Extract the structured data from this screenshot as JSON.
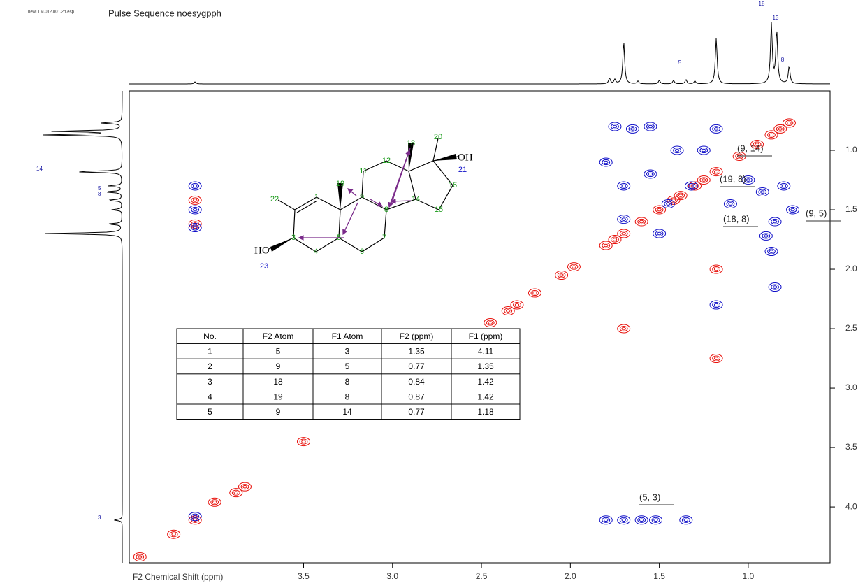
{
  "chart_data": {
    "type": "nmr2d",
    "file": "newLTM.012.001.2rr.esp",
    "title": "Pulse Sequence  noesygpph",
    "x_label": "F2 Chemical Shift (ppm)",
    "xlim": [
      4.48,
      0.54
    ],
    "xticks": [
      3.5,
      3.0,
      2.5,
      2.0,
      1.5,
      1.0
    ],
    "ylim": [
      0.5,
      4.47
    ],
    "yticks": [
      1.0,
      1.5,
      2.0,
      2.5,
      3.0,
      3.5,
      4.0
    ],
    "series": [
      {
        "color": "#e8120c",
        "x": [
          0.77,
          0.82,
          0.87,
          0.95,
          1.05,
          1.18,
          1.25,
          1.3,
          1.38,
          1.42,
          1.5,
          1.6,
          1.7,
          1.75,
          1.8,
          1.98,
          2.05,
          2.2,
          2.3,
          2.35,
          2.45,
          3.5,
          3.83,
          3.88,
          4.0,
          4.11,
          4.23,
          4.42,
          4.11,
          4.11,
          1.18,
          1.7,
          1.18
        ],
        "y": [
          0.77,
          0.82,
          0.87,
          0.95,
          1.05,
          1.18,
          1.25,
          1.3,
          1.38,
          1.42,
          1.5,
          1.6,
          1.7,
          1.75,
          1.8,
          1.98,
          2.05,
          2.2,
          2.3,
          2.35,
          2.45,
          3.45,
          3.83,
          3.88,
          3.96,
          4.11,
          4.23,
          4.42,
          1.42,
          1.62,
          2.75,
          2.5,
          2.0
        ]
      },
      {
        "color": "#1010c8",
        "x": [
          4.11,
          4.11,
          4.11,
          4.11,
          1.8,
          1.7,
          1.6,
          1.52,
          1.35,
          0.8,
          0.75,
          0.85,
          0.9,
          1.0,
          1.1,
          1.25,
          1.4,
          1.55,
          1.65,
          1.75,
          1.8,
          1.7,
          1.18,
          1.18,
          0.87,
          1.45,
          1.32,
          1.5,
          1.7,
          1.55,
          0.92,
          0.85
        ],
        "y": [
          1.3,
          1.5,
          1.65,
          4.08,
          4.11,
          4.11,
          4.11,
          4.11,
          4.11,
          1.3,
          1.5,
          1.6,
          1.72,
          1.25,
          1.45,
          1.0,
          1.0,
          0.8,
          0.82,
          0.8,
          1.1,
          1.3,
          0.82,
          2.3,
          1.85,
          1.45,
          1.3,
          1.7,
          1.58,
          1.2,
          1.35,
          2.15
        ]
      }
    ],
    "f2_projection": {
      "x": [
        4.11,
        1.78,
        1.75,
        1.7,
        1.62,
        1.5,
        1.42,
        1.35,
        1.3,
        1.18,
        0.87,
        0.84,
        0.77
      ],
      "intensity": [
        3,
        8,
        6,
        60,
        4,
        5,
        5,
        6,
        4,
        65,
        85,
        75,
        25
      ],
      "labels": [
        "18",
        "13",
        "8",
        "5"
      ]
    },
    "f1_projection": {
      "y": [
        0.87,
        0.84,
        0.77,
        1.18,
        1.3,
        1.35,
        1.42,
        1.5,
        1.62,
        1.7,
        4.11
      ],
      "intensity": [
        110,
        100,
        30,
        70,
        20,
        25,
        20,
        15,
        20,
        110,
        12
      ],
      "labels": [
        "14",
        "5",
        "8",
        "3"
      ]
    },
    "annotations": [
      "(9, 14)",
      "(19, 8)",
      "(9, 5)",
      "(18, 8)",
      "(5, 3)"
    ],
    "structure": {
      "atoms": [
        "1",
        "3",
        "4",
        "5",
        "6",
        "7",
        "8",
        "9",
        "11",
        "12",
        "13",
        "14",
        "15",
        "16",
        "18",
        "19",
        "20",
        "21",
        "22",
        "23"
      ],
      "groups": [
        "OH",
        "HO"
      ]
    }
  },
  "table": {
    "header": [
      "No.",
      "F2 Atom",
      "F1 Atom",
      "F2 (ppm)",
      "F1 (ppm)"
    ],
    "rows": [
      [
        "1",
        "5",
        "3",
        "1.35",
        "4.11"
      ],
      [
        "2",
        "9",
        "5",
        "0.77",
        "1.35"
      ],
      [
        "3",
        "18",
        "8",
        "0.84",
        "1.42"
      ],
      [
        "4",
        "19",
        "8",
        "0.87",
        "1.42"
      ],
      [
        "5",
        "9",
        "14",
        "0.77",
        "1.18"
      ]
    ]
  }
}
